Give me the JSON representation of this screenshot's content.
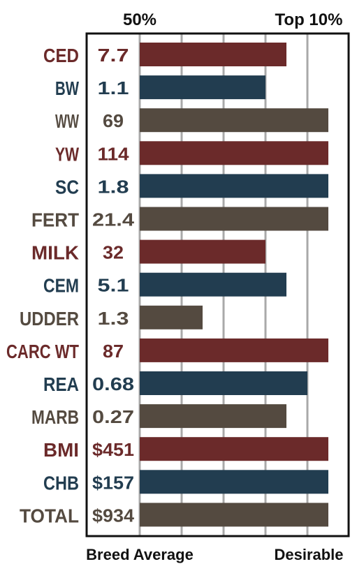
{
  "chart_data": {
    "type": "bar",
    "orientation": "horizontal",
    "top_axis_labels": {
      "left": "50%",
      "right": "Top 10%"
    },
    "bottom_axis_labels": {
      "left": "Breed Average",
      "right": "Desirable"
    },
    "grid": true,
    "xlim": [
      0,
      9
    ],
    "rows": [
      {
        "trait": "CED",
        "value_text": "7.7",
        "level": 7,
        "color_group": "red"
      },
      {
        "trait": "BW",
        "value_text": "1.1",
        "level": 6,
        "color_group": "blue"
      },
      {
        "trait": "WW",
        "value_text": "69",
        "level": 9,
        "color_group": "gray"
      },
      {
        "trait": "YW",
        "value_text": "114",
        "level": 9,
        "color_group": "red"
      },
      {
        "trait": "SC",
        "value_text": "1.8",
        "level": 9,
        "color_group": "blue"
      },
      {
        "trait": "FERT",
        "value_text": "21.4",
        "level": 9,
        "color_group": "gray"
      },
      {
        "trait": "MILK",
        "value_text": "32",
        "level": 6,
        "color_group": "red"
      },
      {
        "trait": "CEM",
        "value_text": "5.1",
        "level": 7,
        "color_group": "blue"
      },
      {
        "trait": "UDDER",
        "value_text": "1.3",
        "level": 3,
        "color_group": "gray"
      },
      {
        "trait": "CARC WT",
        "value_text": "87",
        "level": 9,
        "color_group": "red"
      },
      {
        "trait": "REA",
        "value_text": "0.68",
        "level": 8,
        "color_group": "blue"
      },
      {
        "trait": "MARB",
        "value_text": "0.27",
        "level": 7,
        "color_group": "gray"
      },
      {
        "trait": "BMI",
        "value_text": "$451",
        "level": 9,
        "color_group": "red"
      },
      {
        "trait": "CHB",
        "value_text": "$157",
        "level": 9,
        "color_group": "blue"
      },
      {
        "trait": "TOTAL",
        "value_text": "$934",
        "level": 9,
        "color_group": "gray"
      }
    ],
    "colors": {
      "red": "#6b2a2a",
      "blue": "#223d50",
      "gray": "#544a40",
      "grid": "#a9a9a9",
      "frame": "#111111"
    }
  }
}
